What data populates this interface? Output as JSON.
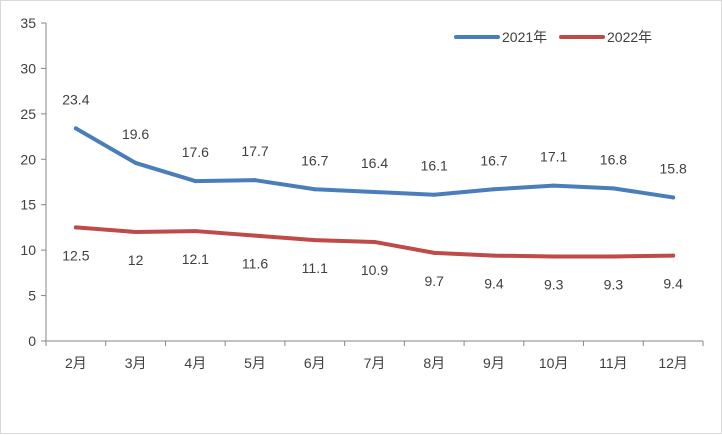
{
  "chart_data": {
    "type": "line",
    "categories": [
      "2月",
      "3月",
      "4月",
      "5月",
      "6月",
      "7月",
      "8月",
      "9月",
      "10月",
      "11月",
      "12月"
    ],
    "series": [
      {
        "name": "2021年",
        "color": "#4a7ebb",
        "values": [
          23.4,
          19.6,
          17.6,
          17.7,
          16.7,
          16.4,
          16.1,
          16.7,
          17.1,
          16.8,
          15.8
        ],
        "labels": [
          "23.4",
          "19.6",
          "17.6",
          "17.7",
          "16.7",
          "16.4",
          "16.1",
          "16.7",
          "17.1",
          "16.8",
          "15.8"
        ]
      },
      {
        "name": "2022年",
        "color": "#be4b48",
        "values": [
          12.5,
          12,
          12.1,
          11.6,
          11.1,
          10.9,
          9.7,
          9.4,
          9.3,
          9.3,
          9.4
        ],
        "labels": [
          "12.5",
          "12",
          "12.1",
          "11.6",
          "11.1",
          "10.9",
          "9.7",
          "9.4",
          "9.3",
          "9.3",
          "9.4"
        ]
      }
    ],
    "ylim": [
      0,
      35
    ],
    "yticks": [
      "0",
      "5",
      "10",
      "15",
      "20",
      "25",
      "30",
      "35"
    ],
    "title": "",
    "xlabel": "",
    "ylabel": "",
    "legend_position": "top-right",
    "grid": false
  }
}
